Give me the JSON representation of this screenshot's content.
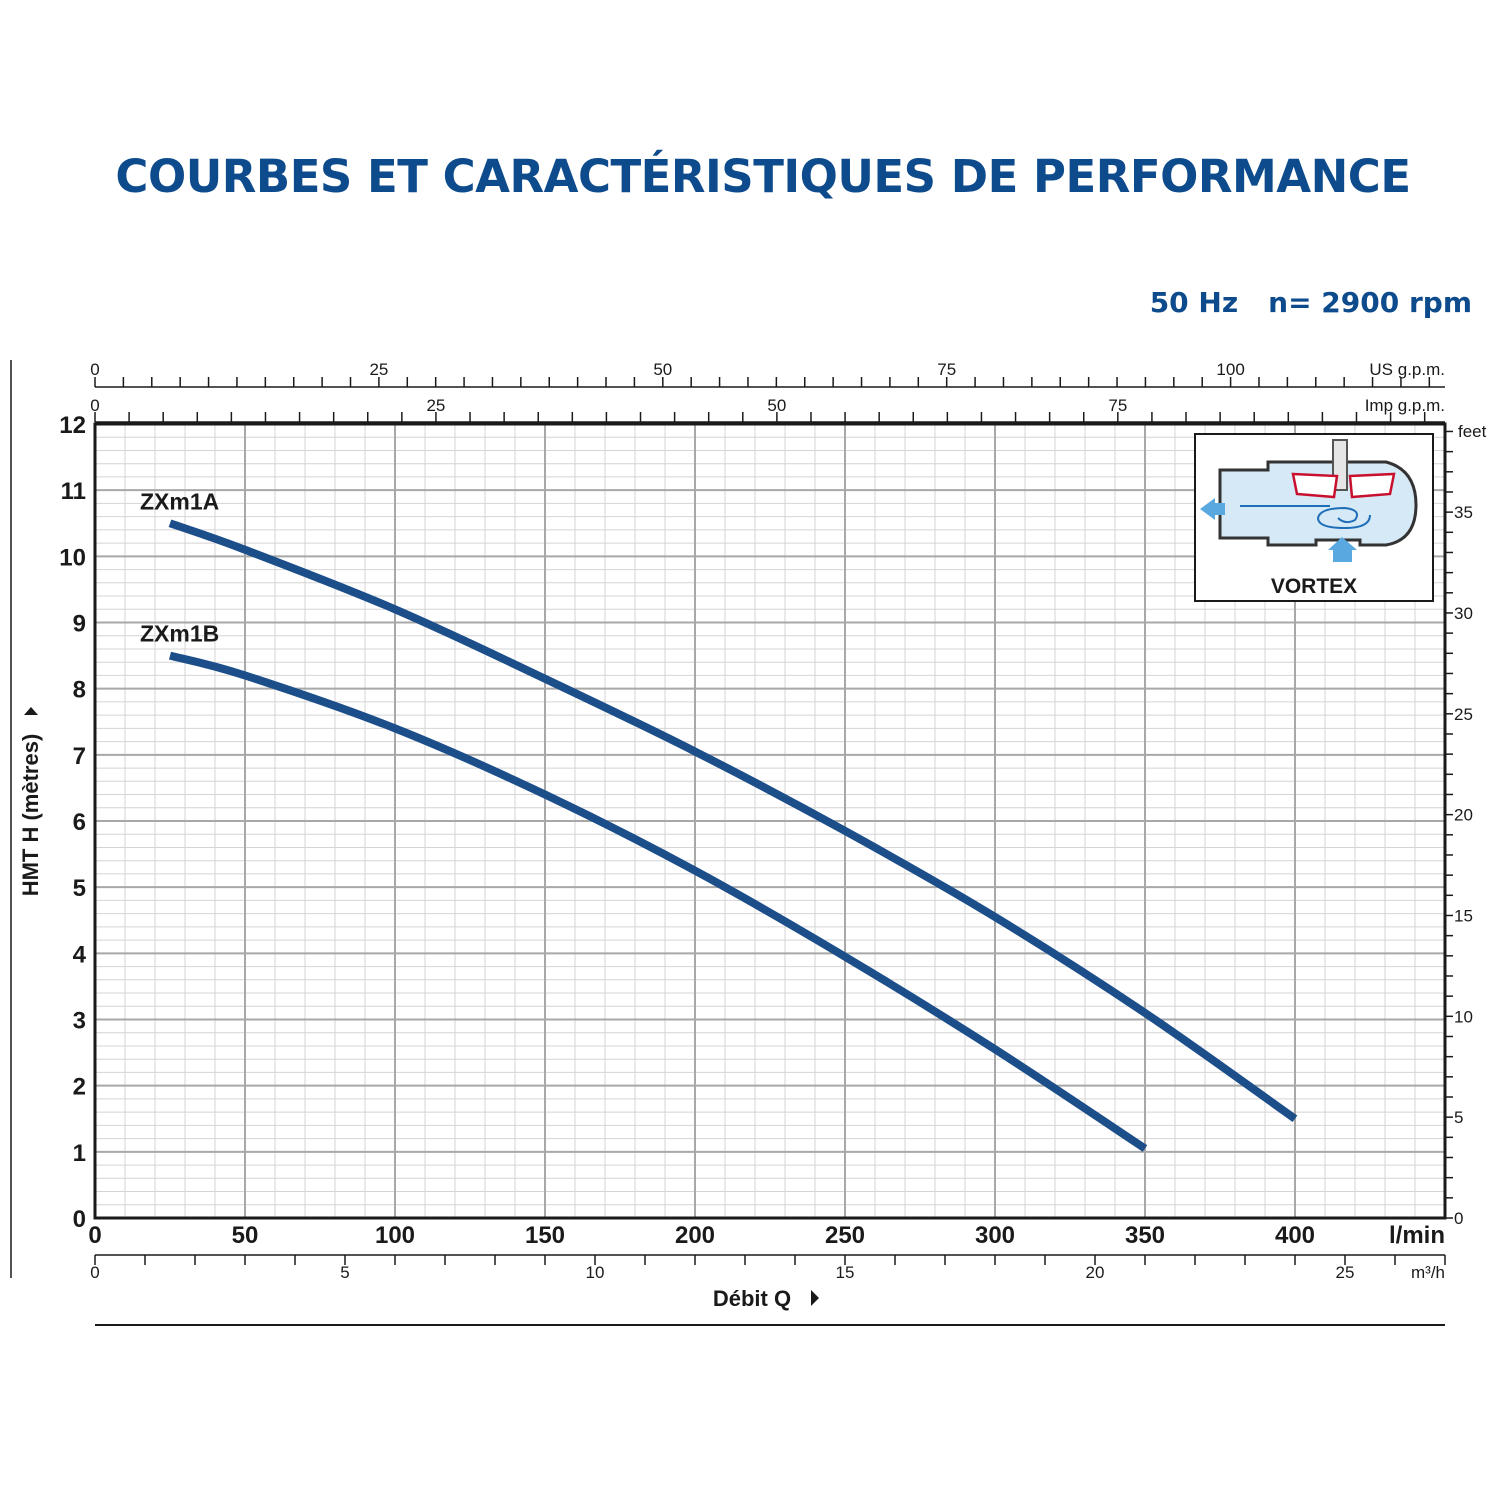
{
  "title": "COURBES ET CARACTÉRISTIQUES DE PERFORMANCE",
  "subtitle": {
    "frequency": "50 Hz",
    "speed": "n= 2900 rpm"
  },
  "inset": {
    "label": "VORTEX"
  },
  "chart_data": {
    "type": "line",
    "xlabel": "Débit Q",
    "ylabel": "HMT H (mètres)",
    "x_unit": "l/min",
    "xlim": [
      0,
      450
    ],
    "ylim": [
      0,
      12
    ],
    "x_ticks": [
      0,
      50,
      100,
      150,
      200,
      250,
      300,
      350,
      400
    ],
    "y_ticks": [
      0,
      1,
      2,
      3,
      4,
      5,
      6,
      7,
      8,
      9,
      10,
      11,
      12
    ],
    "grid": true,
    "secondary_axes": {
      "m3h": {
        "unit": "m³/h",
        "ticks": [
          0,
          5,
          10,
          15,
          20,
          25
        ]
      },
      "us_gpm": {
        "unit": "US g.p.m.",
        "ticks": [
          0,
          25,
          50,
          75,
          100
        ]
      },
      "imp_gpm": {
        "unit": "Imp g.p.m.",
        "ticks": [
          0,
          25,
          50,
          75
        ]
      },
      "feet": {
        "unit": "feet",
        "ticks": [
          0,
          5,
          10,
          15,
          20,
          25,
          30,
          35
        ]
      }
    },
    "series": [
      {
        "name": "ZXm1A",
        "color": "#1c4e8a",
        "x": [
          25,
          50,
          100,
          150,
          200,
          250,
          300,
          350,
          400
        ],
        "y": [
          10.5,
          10.1,
          9.2,
          8.15,
          7.05,
          5.85,
          4.55,
          3.1,
          1.5
        ]
      },
      {
        "name": "ZXm1B",
        "color": "#1c4e8a",
        "x": [
          25,
          50,
          100,
          150,
          200,
          250,
          300,
          350
        ],
        "y": [
          8.5,
          8.2,
          7.4,
          6.4,
          5.25,
          3.95,
          2.55,
          1.05
        ]
      }
    ]
  }
}
